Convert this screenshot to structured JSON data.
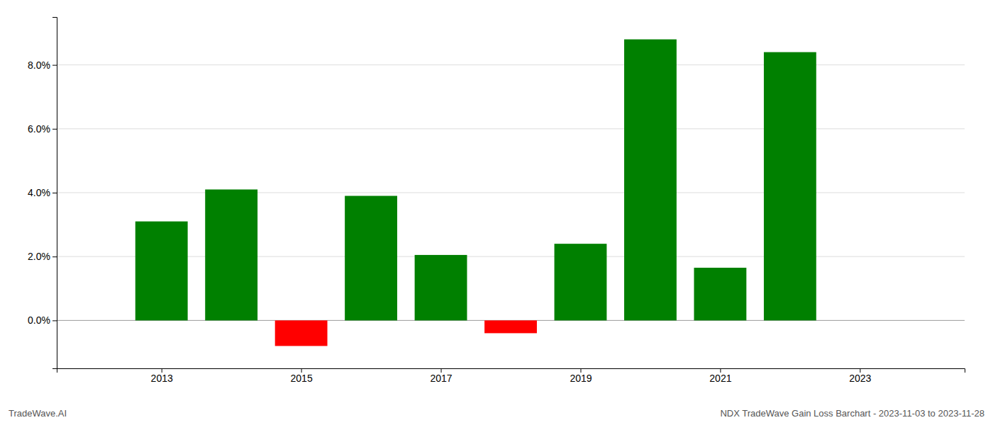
{
  "chart_data": {
    "type": "bar",
    "x": [
      2013,
      2014,
      2015,
      2016,
      2017,
      2018,
      2019,
      2020,
      2021,
      2022
    ],
    "values": [
      0.031,
      0.041,
      -0.008,
      0.039,
      0.0205,
      -0.004,
      0.024,
      0.088,
      0.0165,
      0.084
    ],
    "colors": [
      "#008000",
      "#008000",
      "#ff0000",
      "#008000",
      "#008000",
      "#ff0000",
      "#008000",
      "#008000",
      "#008000",
      "#008000"
    ],
    "xlim": [
      2011.5,
      2024.5
    ],
    "xticks": [
      2013,
      2015,
      2017,
      2019,
      2021,
      2023
    ],
    "ylim": [
      -0.015,
      0.095
    ],
    "yticks": [
      {
        "value": 0.0,
        "label": "0.0%"
      },
      {
        "value": 0.02,
        "label": "2.0%"
      },
      {
        "value": 0.04,
        "label": "4.0%"
      },
      {
        "value": 0.06,
        "label": "6.0%"
      },
      {
        "value": 0.08,
        "label": "8.0%"
      }
    ],
    "grid": true,
    "annotations": [
      "TradeWave.AI",
      "NDX TradeWave Gain Loss Barchart - 2023-11-03 to 2023-11-28"
    ]
  }
}
